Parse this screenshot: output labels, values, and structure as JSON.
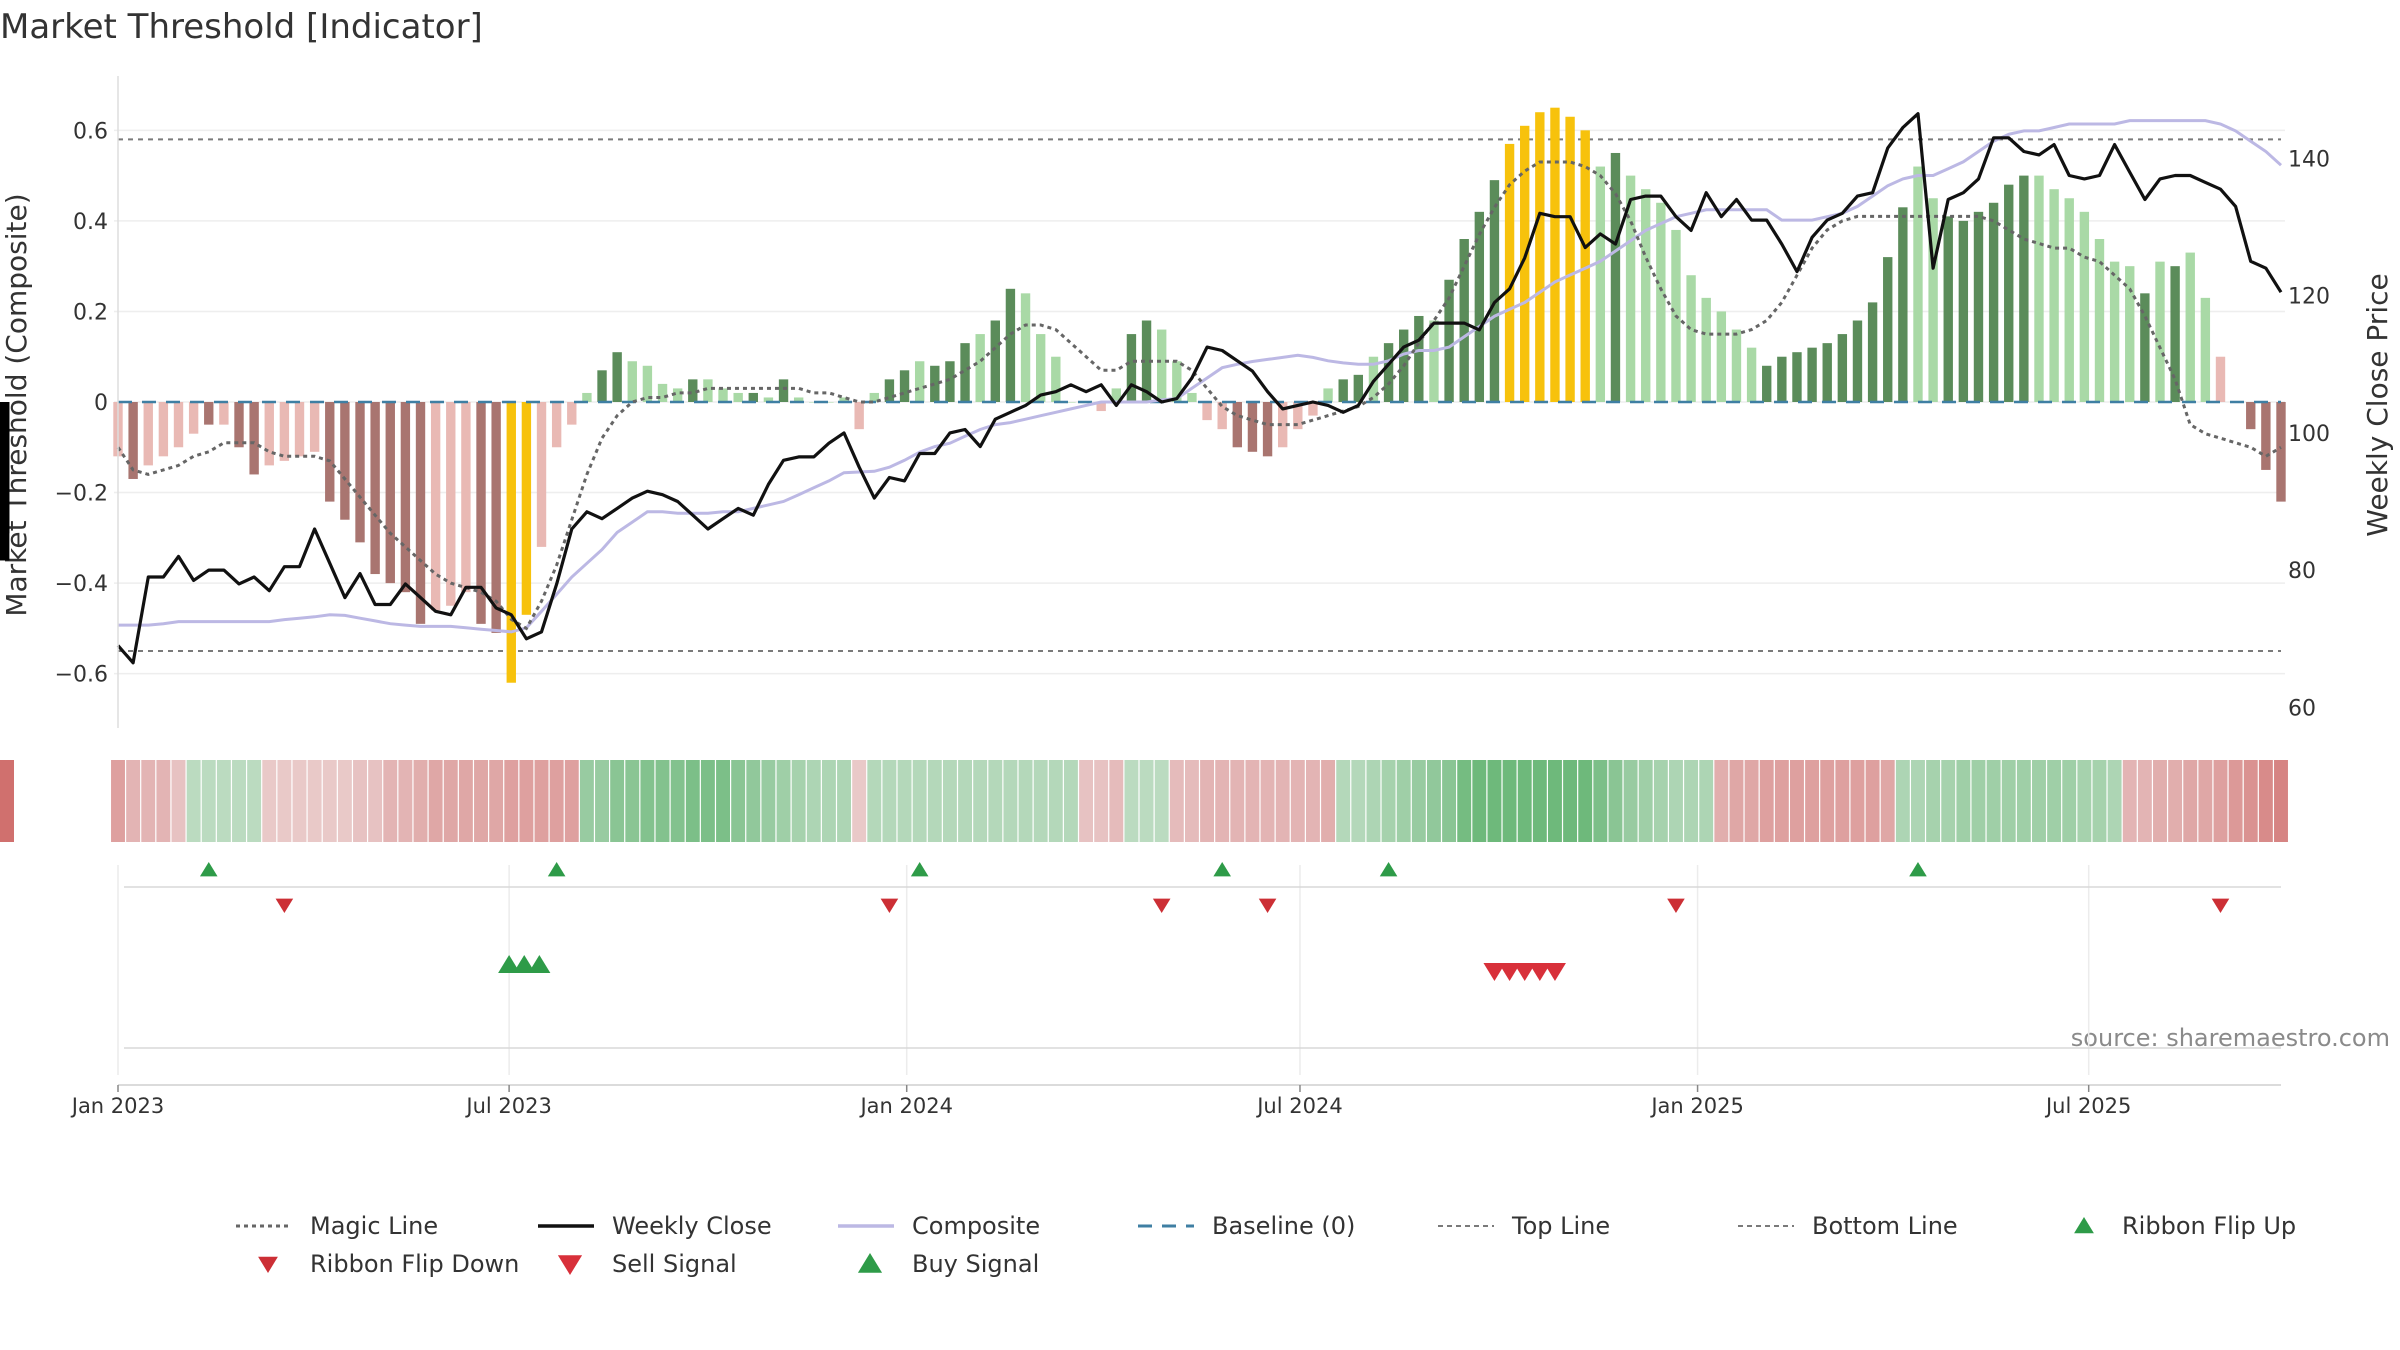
{
  "chart_data": {
    "type": "bar",
    "title": "Market Threshold [Indicator]",
    "ylabel": "Market Threshold (Composite)",
    "y2label": "Weekly Close Price",
    "source": "source: sharemaestro.com",
    "ylim": [
      -0.72,
      0.72
    ],
    "y2lim": [
      57,
      152
    ],
    "yticks": [
      -0.6,
      -0.4,
      -0.2,
      0,
      0.2,
      0.4,
      0.6
    ],
    "ytick_labels": [
      "−0.6",
      "−0.4",
      "−0.2",
      "0",
      "0.2",
      "0.4",
      "0.6"
    ],
    "y2ticks": [
      60,
      80,
      100,
      120,
      140
    ],
    "y2tick_labels": [
      "60",
      "80",
      "100",
      "120",
      "140"
    ],
    "xticks": [
      {
        "date": "2023-01-01",
        "label": "Jan 2023"
      },
      {
        "date": "2023-07-01",
        "label": "Jul 2023"
      },
      {
        "date": "2024-01-01",
        "label": "Jan 2024"
      },
      {
        "date": "2024-07-01",
        "label": "Jul 2024"
      },
      {
        "date": "2025-01-01",
        "label": "Jan 2025"
      },
      {
        "date": "2025-07-01",
        "label": "Jul 2025"
      }
    ],
    "top_line": 0.58,
    "bottom_line": -0.55,
    "baseline": 0,
    "grid": true,
    "legend_position": "bottom",
    "legend": [
      {
        "key": "magic",
        "label": "Magic Line"
      },
      {
        "key": "close",
        "label": "Weekly Close"
      },
      {
        "key": "composite",
        "label": "Composite"
      },
      {
        "key": "baseline",
        "label": "Baseline (0)"
      },
      {
        "key": "top",
        "label": "Top Line"
      },
      {
        "key": "bottom",
        "label": "Bottom Line"
      },
      {
        "key": "flipup",
        "label": "Ribbon Flip Up"
      },
      {
        "key": "flipdown",
        "label": "Ribbon Flip Down"
      },
      {
        "key": "sell",
        "label": "Sell Signal"
      },
      {
        "key": "buy",
        "label": "Buy Signal"
      }
    ],
    "colors": {
      "dark_red": "#a97570",
      "light_red": "#e9b9b4",
      "dark_green": "#5b8c5a",
      "light_green": "#a9d9a6",
      "gold": "#f7c20c",
      "magic_line": "#666666",
      "weekly_close": "#111111",
      "composite": "#bcb8e4",
      "baseline": "#3f7fa3",
      "threshold_lines": "#7a7a7a",
      "flip_up": "#2e9b48",
      "flip_down": "#cc2f35",
      "sell": "#d8303a",
      "buy": "#2e9b48"
    },
    "x": [
      "2023-01-01",
      "2023-01-08",
      "2023-01-15",
      "2023-01-22",
      "2023-01-29",
      "2023-02-05",
      "2023-02-12",
      "2023-02-19",
      "2023-02-26",
      "2023-03-05",
      "2023-03-12",
      "2023-03-19",
      "2023-03-26",
      "2023-04-02",
      "2023-04-09",
      "2023-04-16",
      "2023-04-23",
      "2023-04-30",
      "2023-05-07",
      "2023-05-14",
      "2023-05-21",
      "2023-05-28",
      "2023-06-04",
      "2023-06-11",
      "2023-06-18",
      "2023-06-25",
      "2023-07-02",
      "2023-07-09",
      "2023-07-16",
      "2023-07-23",
      "2023-07-30",
      "2023-08-06",
      "2023-08-13",
      "2023-08-20",
      "2023-08-27",
      "2023-09-03",
      "2023-09-10",
      "2023-09-17",
      "2023-09-24",
      "2023-10-01",
      "2023-10-08",
      "2023-10-15",
      "2023-10-22",
      "2023-10-29",
      "2023-11-05",
      "2023-11-12",
      "2023-11-19",
      "2023-11-26",
      "2023-12-03",
      "2023-12-10",
      "2023-12-17",
      "2023-12-24",
      "2023-12-31",
      "2024-01-07",
      "2024-01-14",
      "2024-01-21",
      "2024-01-28",
      "2024-02-04",
      "2024-02-11",
      "2024-02-18",
      "2024-02-25",
      "2024-03-03",
      "2024-03-10",
      "2024-03-17",
      "2024-03-24",
      "2024-03-31",
      "2024-04-07",
      "2024-04-14",
      "2024-04-21",
      "2024-04-28",
      "2024-05-05",
      "2024-05-12",
      "2024-05-19",
      "2024-05-26",
      "2024-06-02",
      "2024-06-09",
      "2024-06-16",
      "2024-06-23",
      "2024-06-30",
      "2024-07-07",
      "2024-07-14",
      "2024-07-21",
      "2024-07-28",
      "2024-08-04",
      "2024-08-11",
      "2024-08-18",
      "2024-08-25",
      "2024-09-01",
      "2024-09-08",
      "2024-09-15",
      "2024-09-22",
      "2024-09-29",
      "2024-10-06",
      "2024-10-13",
      "2024-10-20",
      "2024-10-27",
      "2024-11-03",
      "2024-11-10",
      "2024-11-17",
      "2024-11-24",
      "2024-12-01",
      "2024-12-08",
      "2024-12-15",
      "2024-12-22",
      "2024-12-29",
      "2025-01-05",
      "2025-01-12",
      "2025-01-19",
      "2025-01-26",
      "2025-02-02",
      "2025-02-09",
      "2025-02-16",
      "2025-02-23",
      "2025-03-02",
      "2025-03-09",
      "2025-03-16",
      "2025-03-23",
      "2025-03-30",
      "2025-04-06",
      "2025-04-13",
      "2025-04-20",
      "2025-04-27",
      "2025-05-04",
      "2025-05-11",
      "2025-05-18",
      "2025-05-25",
      "2025-06-01",
      "2025-06-08",
      "2025-06-15",
      "2025-06-22",
      "2025-06-29",
      "2025-07-06",
      "2025-07-13",
      "2025-07-20",
      "2025-07-27",
      "2025-08-03",
      "2025-08-10",
      "2025-08-17",
      "2025-08-24",
      "2025-08-31",
      "2025-09-07",
      "2025-09-14",
      "2025-09-21",
      "2025-09-28"
    ],
    "composite_bars": [
      -0.12,
      -0.17,
      -0.14,
      -0.12,
      -0.1,
      -0.07,
      -0.05,
      -0.05,
      -0.1,
      -0.16,
      -0.14,
      -0.13,
      -0.12,
      -0.11,
      -0.22,
      -0.26,
      -0.31,
      -0.38,
      -0.4,
      -0.42,
      -0.49,
      -0.46,
      -0.45,
      -0.42,
      -0.49,
      -0.51,
      -0.62,
      -0.47,
      -0.32,
      -0.1,
      -0.05,
      0.02,
      0.07,
      0.11,
      0.09,
      0.08,
      0.04,
      0.03,
      0.05,
      0.05,
      0.03,
      0.02,
      0.02,
      0.01,
      0.05,
      0.01,
      0.0,
      0.0,
      0.01,
      -0.06,
      0.02,
      0.05,
      0.07,
      0.09,
      0.08,
      0.09,
      0.13,
      0.15,
      0.18,
      0.25,
      0.24,
      0.15,
      0.1,
      0.0,
      0.0,
      -0.02,
      0.03,
      0.15,
      0.18,
      0.16,
      0.09,
      0.02,
      -0.04,
      -0.06,
      -0.1,
      -0.11,
      -0.12,
      -0.1,
      -0.06,
      -0.03,
      0.03,
      0.05,
      0.06,
      0.1,
      0.13,
      0.16,
      0.19,
      0.18,
      0.27,
      0.36,
      0.42,
      0.49,
      0.57,
      0.61,
      0.64,
      0.65,
      0.63,
      0.6,
      0.52,
      0.55,
      0.5,
      0.47,
      0.44,
      0.38,
      0.28,
      0.23,
      0.2,
      0.16,
      0.12,
      0.08,
      0.1,
      0.11,
      0.12,
      0.13,
      0.15,
      0.18,
      0.22,
      0.32,
      0.43,
      0.52,
      0.45,
      0.41,
      0.4,
      0.42,
      0.44,
      0.48,
      0.5,
      0.5,
      0.47,
      0.45,
      0.42,
      0.36,
      0.31,
      0.3,
      0.24,
      0.31,
      0.3,
      0.33,
      0.23,
      0.1,
      0.0,
      -0.06,
      -0.15,
      -0.22,
      -0.29,
      -0.35
    ],
    "bar_shades": [
      "light_red",
      "dark_red",
      "light_red",
      "light_red",
      "light_red",
      "light_red",
      "dark_red",
      "light_red",
      "dark_red",
      "dark_red",
      "light_red",
      "light_red",
      "light_red",
      "light_red",
      "dark_red",
      "dark_red",
      "dark_red",
      "dark_red",
      "dark_red",
      "dark_red",
      "dark_red",
      "light_red",
      "light_red",
      "light_red",
      "dark_red",
      "dark_red",
      "gold",
      "gold",
      "light_red",
      "light_red",
      "light_red",
      "light_green",
      "dark_green",
      "dark_green",
      "light_green",
      "light_green",
      "light_green",
      "light_green",
      "dark_green",
      "light_green",
      "light_green",
      "light_green",
      "dark_green",
      "light_green",
      "dark_green",
      "light_green",
      "light_green",
      "light_green",
      "light_green",
      "light_red",
      "light_green",
      "dark_green",
      "dark_green",
      "light_green",
      "dark_green",
      "dark_green",
      "dark_green",
      "light_green",
      "dark_green",
      "dark_green",
      "light_green",
      "light_green",
      "light_green",
      "light_green",
      "light_green",
      "light_red",
      "light_green",
      "dark_green",
      "dark_green",
      "light_green",
      "light_green",
      "light_green",
      "light_red",
      "light_red",
      "dark_red",
      "dark_red",
      "dark_red",
      "light_red",
      "light_red",
      "light_red",
      "light_green",
      "dark_green",
      "dark_green",
      "light_green",
      "dark_green",
      "dark_green",
      "dark_green",
      "light_green",
      "dark_green",
      "dark_green",
      "dark_green",
      "dark_green",
      "gold",
      "gold",
      "gold",
      "gold",
      "gold",
      "gold",
      "light_green",
      "dark_green",
      "light_green",
      "light_green",
      "light_green",
      "light_green",
      "light_green",
      "light_green",
      "light_green",
      "light_green",
      "light_green",
      "dark_green",
      "dark_green",
      "dark_green",
      "dark_green",
      "dark_green",
      "dark_green",
      "dark_green",
      "dark_green",
      "dark_green",
      "dark_green",
      "light_green",
      "light_green",
      "dark_green",
      "dark_green",
      "dark_green",
      "dark_green",
      "dark_green",
      "dark_green",
      "light_green",
      "light_green",
      "light_green",
      "light_green",
      "light_green",
      "light_green",
      "light_green",
      "dark_green",
      "light_green",
      "dark_green",
      "light_green",
      "light_green",
      "light_red",
      "dark_red",
      "dark_red",
      "dark_red",
      "dark_red"
    ],
    "weekly_close": [
      69,
      66.5,
      79,
      79,
      82,
      78.5,
      80,
      80,
      78,
      79,
      77,
      80.5,
      80.5,
      86,
      81,
      76,
      79.5,
      75,
      75,
      78,
      76,
      74,
      73.5,
      77.5,
      77.5,
      74.5,
      73.5,
      70,
      71,
      78,
      86,
      88.5,
      87.5,
      89,
      90.5,
      91.5,
      91,
      90,
      88,
      86,
      87.5,
      89,
      88,
      92.5,
      96,
      96.5,
      96.5,
      98.5,
      100,
      95,
      90.5,
      93.5,
      93,
      97,
      97,
      100,
      100.5,
      98,
      102,
      103,
      104,
      105.5,
      106,
      107,
      106,
      107,
      104,
      107,
      106,
      104.5,
      105,
      108,
      112.5,
      112,
      110.5,
      109,
      106,
      103.5,
      104,
      104.5,
      104,
      103,
      104,
      107.5,
      110,
      112.5,
      113.5,
      116,
      116,
      116,
      115,
      119,
      121,
      125.5,
      132,
      131.5,
      131.5,
      127,
      129,
      127.5,
      134,
      134.5,
      134.5,
      131.5,
      129.5,
      135,
      131.5,
      134,
      131,
      131,
      127.5,
      123.5,
      128.5,
      131,
      132,
      134.5,
      135,
      141.5,
      144.5,
      146.5,
      124,
      134,
      135,
      137,
      143,
      143,
      141,
      140.5,
      142,
      137.5,
      137,
      137.5,
      142,
      138,
      134,
      137,
      137.5,
      137.5,
      136.5,
      135.5,
      133,
      125,
      124,
      120.5,
      119.5,
      112
    ],
    "composite_line": [
      72,
      72,
      72,
      72.2,
      72.5,
      72.5,
      72.5,
      72.5,
      72.5,
      72.5,
      72.5,
      72.8,
      73,
      73.2,
      73.5,
      73.4,
      73,
      72.6,
      72.2,
      72,
      71.8,
      71.8,
      71.8,
      71.6,
      71.4,
      71.2,
      71,
      71.6,
      74,
      76.5,
      79,
      81,
      83,
      85.5,
      87,
      88.5,
      88.5,
      88.3,
      88.3,
      88.3,
      88.5,
      88.5,
      89,
      89.5,
      90,
      91,
      92,
      93,
      94.2,
      94.3,
      94.4,
      95,
      96,
      97.2,
      98,
      98.5,
      99.5,
      100.5,
      101.2,
      101.5,
      102,
      102.5,
      103,
      103.5,
      104,
      104.5,
      104.5,
      104.5,
      104.5,
      104.8,
      105,
      106.5,
      108,
      109.5,
      110,
      110.4,
      110.7,
      111,
      111.3,
      111,
      110.5,
      110.2,
      110,
      110,
      110.5,
      111.5,
      112,
      112,
      112.5,
      114,
      115.5,
      117,
      118,
      119,
      120.5,
      122,
      123,
      124,
      125,
      126.5,
      128,
      129.5,
      130.5,
      131.5,
      132,
      132.5,
      132.5,
      132.5,
      132.5,
      132.5,
      131,
      131,
      131,
      131.5,
      132,
      133,
      134.5,
      136,
      137,
      137.5,
      137.5,
      138.5,
      139.5,
      141,
      142.5,
      143.5,
      144,
      144,
      144.5,
      145,
      145,
      145,
      145,
      145.5,
      145.5,
      145.5,
      145.5,
      145.5,
      145.5,
      145,
      144,
      142.5,
      141,
      139,
      137,
      135,
      133,
      131,
      129
    ],
    "magic_line": [
      -0.1,
      -0.15,
      -0.16,
      -0.15,
      -0.14,
      -0.12,
      -0.11,
      -0.09,
      -0.09,
      -0.09,
      -0.11,
      -0.12,
      -0.12,
      -0.12,
      -0.13,
      -0.17,
      -0.21,
      -0.25,
      -0.29,
      -0.32,
      -0.35,
      -0.38,
      -0.4,
      -0.41,
      -0.42,
      -0.44,
      -0.48,
      -0.5,
      -0.44,
      -0.36,
      -0.26,
      -0.16,
      -0.08,
      -0.03,
      0.0,
      0.01,
      0.01,
      0.02,
      0.02,
      0.03,
      0.03,
      0.03,
      0.03,
      0.03,
      0.03,
      0.03,
      0.02,
      0.02,
      0.01,
      0.0,
      0.0,
      0.01,
      0.02,
      0.03,
      0.04,
      0.05,
      0.07,
      0.09,
      0.12,
      0.15,
      0.17,
      0.17,
      0.16,
      0.13,
      0.1,
      0.07,
      0.07,
      0.09,
      0.09,
      0.09,
      0.09,
      0.07,
      0.03,
      -0.01,
      -0.03,
      -0.04,
      -0.05,
      -0.05,
      -0.05,
      -0.04,
      -0.03,
      -0.02,
      -0.01,
      0.01,
      0.04,
      0.08,
      0.13,
      0.18,
      0.23,
      0.3,
      0.37,
      0.43,
      0.48,
      0.51,
      0.53,
      0.53,
      0.53,
      0.52,
      0.5,
      0.46,
      0.4,
      0.32,
      0.25,
      0.19,
      0.16,
      0.15,
      0.15,
      0.15,
      0.16,
      0.18,
      0.22,
      0.28,
      0.34,
      0.38,
      0.4,
      0.41,
      0.41,
      0.41,
      0.41,
      0.41,
      0.41,
      0.41,
      0.41,
      0.41,
      0.4,
      0.38,
      0.36,
      0.35,
      0.34,
      0.34,
      0.32,
      0.31,
      0.28,
      0.25,
      0.19,
      0.12,
      0.05,
      -0.05,
      -0.07,
      -0.08,
      -0.09,
      -0.1,
      -0.12,
      -0.1
    ],
    "ribbon": [
      -0.45,
      -0.3,
      -0.3,
      -0.3,
      -0.2,
      0.25,
      0.25,
      0.25,
      0.25,
      0.25,
      -0.15,
      -0.15,
      -0.15,
      -0.15,
      -0.15,
      -0.15,
      -0.2,
      -0.2,
      -0.3,
      -0.3,
      -0.35,
      -0.4,
      -0.4,
      -0.4,
      -0.4,
      -0.4,
      -0.45,
      -0.45,
      -0.45,
      -0.45,
      -0.45,
      0.5,
      0.5,
      0.6,
      0.6,
      0.65,
      0.65,
      0.65,
      0.7,
      0.7,
      0.7,
      0.6,
      0.55,
      0.5,
      0.45,
      0.4,
      0.35,
      0.35,
      0.35,
      -0.15,
      0.3,
      0.3,
      0.3,
      0.3,
      0.3,
      0.3,
      0.3,
      0.3,
      0.3,
      0.3,
      0.3,
      0.3,
      0.3,
      0.3,
      -0.2,
      -0.2,
      -0.25,
      0.25,
      0.25,
      0.25,
      -0.25,
      -0.25,
      -0.3,
      -0.3,
      -0.3,
      -0.3,
      -0.3,
      -0.3,
      -0.3,
      -0.3,
      -0.35,
      0.3,
      0.3,
      0.35,
      0.4,
      0.45,
      0.5,
      0.55,
      0.6,
      0.75,
      0.8,
      0.8,
      0.8,
      0.8,
      0.8,
      0.8,
      0.8,
      0.8,
      0.7,
      0.6,
      0.5,
      0.45,
      0.4,
      0.35,
      0.35,
      0.35,
      -0.35,
      -0.4,
      -0.4,
      -0.45,
      -0.45,
      -0.45,
      -0.45,
      -0.45,
      -0.45,
      -0.45,
      -0.45,
      -0.4,
      0.35,
      0.35,
      0.4,
      0.4,
      0.45,
      0.45,
      0.45,
      0.45,
      0.45,
      0.45,
      0.45,
      0.45,
      0.4,
      0.4,
      0.35,
      -0.3,
      -0.3,
      -0.35,
      -0.35,
      -0.4,
      -0.4,
      -0.45,
      -0.5,
      -0.55,
      -0.6,
      -0.65,
      -0.7,
      -0.75,
      -0.8
    ],
    "ribbon_flip_up": [
      "2023-02-12",
      "2023-07-23",
      "2024-01-07",
      "2024-05-26",
      "2024-08-11",
      "2025-04-13"
    ],
    "ribbon_flip_down": [
      "2023-03-19",
      "2023-12-24",
      "2024-04-28",
      "2024-06-16",
      "2024-12-22",
      "2025-08-31"
    ],
    "buy_signal": [
      "2023-07-01",
      "2023-07-08",
      "2023-07-15"
    ],
    "sell_signal": [
      "2024-09-29",
      "2024-10-06",
      "2024-10-13",
      "2024-10-20",
      "2024-10-27"
    ]
  }
}
